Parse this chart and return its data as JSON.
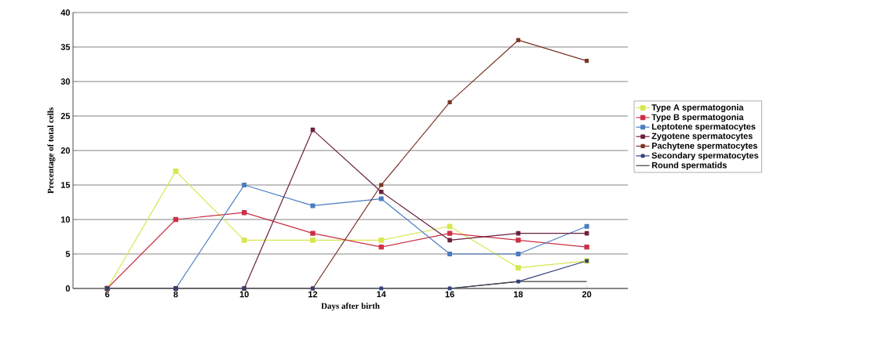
{
  "chart_data": {
    "type": "line",
    "xlabel": "Days after birth",
    "ylabel": "Precentage of total cells",
    "categories": [
      "6",
      "8",
      "10",
      "12",
      "14",
      "16",
      "18",
      "20"
    ],
    "series": [
      {
        "name": "Type A spermatogonia",
        "color": "#d8e650",
        "values": [
          0,
          17,
          7,
          7,
          7,
          9,
          3,
          4
        ]
      },
      {
        "name": "Type B spermatogonia",
        "color": "#cc3045",
        "values": [
          0,
          10,
          11,
          8,
          6,
          8,
          7,
          6
        ]
      },
      {
        "name": "Leptotene spermatocytes",
        "color": "#4a7cc0",
        "values": [
          0,
          0,
          15,
          12,
          13,
          5,
          5,
          9
        ]
      },
      {
        "name": "Zygotene  spermatocytes",
        "color": "#6a2040",
        "values": [
          0,
          0,
          0,
          23,
          14,
          7,
          8,
          8
        ]
      },
      {
        "name": "Pachytene spermatocytes",
        "color": "#7a3424",
        "values": [
          0,
          0,
          0,
          0,
          15,
          27,
          36,
          33
        ]
      },
      {
        "name": "Secondary spermatocytes",
        "color": "#33407a",
        "values": [
          0,
          0,
          0,
          0,
          0,
          0,
          1,
          4
        ]
      },
      {
        "name": "Round spermatids",
        "color": "#404040",
        "marker": "none",
        "values": [
          0,
          0,
          0,
          0,
          0,
          0,
          1,
          1
        ]
      }
    ],
    "ylim": [
      0,
      40
    ],
    "yticks": [
      0,
      5,
      10,
      15,
      20,
      25,
      30,
      35,
      40
    ],
    "grid": "y",
    "legend": "right",
    "marker": "square",
    "line_style": "solid"
  }
}
